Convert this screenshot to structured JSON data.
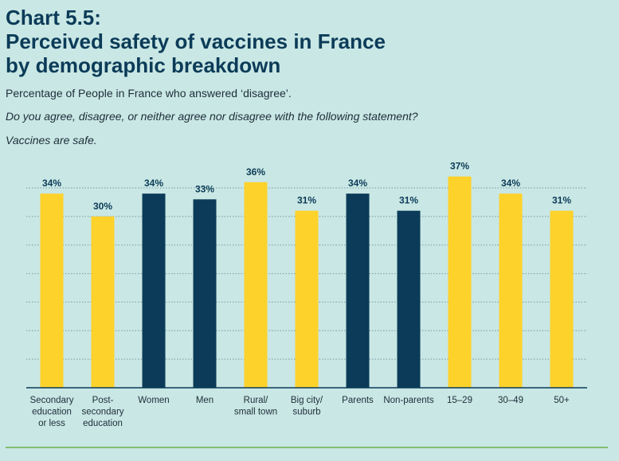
{
  "chart_data": {
    "type": "bar",
    "title_lines": [
      "Chart 5.5:",
      "Perceived safety of vaccines in France",
      "by demographic breakdown"
    ],
    "subtitle": "Percentage of People in France who answered ‘disagree’.",
    "question": "Do you agree, disagree, or neither agree nor disagree with the following statement?",
    "statement": "Vaccines are safe.",
    "categories": [
      "Secondary\neducation\nor less",
      "Post-\nsecondary\neducation",
      "Women",
      "Men",
      "Rural/\nsmall town",
      "Big city/\nsuburb",
      "Parents",
      "Non-parents",
      "15–29",
      "30–49",
      "50+"
    ],
    "values": [
      34,
      30,
      34,
      33,
      36,
      31,
      34,
      31,
      37,
      34,
      31
    ],
    "value_labels": [
      "34%",
      "30%",
      "34%",
      "33%",
      "36%",
      "31%",
      "34%",
      "31%",
      "37%",
      "34%",
      "31%"
    ],
    "colors": [
      "#fdd22b",
      "#fdd22b",
      "#0b3b58",
      "#0b3b58",
      "#fdd22b",
      "#fdd22b",
      "#0b3b58",
      "#0b3b58",
      "#fdd22b",
      "#fdd22b",
      "#fdd22b"
    ],
    "ylim": [
      0,
      35
    ],
    "yticks": [
      0,
      5,
      10,
      15,
      20,
      25,
      30,
      35
    ],
    "grid": true
  }
}
